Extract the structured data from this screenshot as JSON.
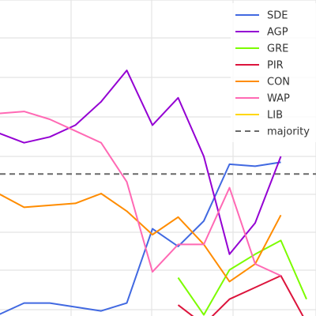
{
  "chart_data": {
    "type": "line",
    "title": "",
    "xlabel": "",
    "ylabel": "",
    "grid": true,
    "legend_position": "top-right",
    "x": [
      1,
      2,
      3,
      4,
      5,
      6,
      7,
      8,
      9,
      10,
      11,
      12,
      13
    ],
    "majority": 36,
    "series": [
      {
        "name": "SDE",
        "color": "#4169e1",
        "values": [
          0,
          3,
          3,
          2,
          1,
          3,
          22,
          17.5,
          24,
          38.5,
          38,
          39,
          null
        ]
      },
      {
        "name": "AGP",
        "color": "#9400d3",
        "values": [
          46.5,
          44,
          45.5,
          48.5,
          54.5,
          62.5,
          48.5,
          55.5,
          40.5,
          15.5,
          23.5,
          40.5,
          null
        ]
      },
      {
        "name": "GRE",
        "color": "#7cfc00",
        "values": [
          null,
          null,
          null,
          null,
          null,
          null,
          null,
          9.5,
          0,
          11.5,
          15.5,
          19,
          4
        ]
      },
      {
        "name": "PIR",
        "color": "#dc143c",
        "values": [
          null,
          null,
          null,
          null,
          null,
          null,
          null,
          2.5,
          -2.5,
          4,
          7,
          10,
          -2
        ]
      },
      {
        "name": "CON",
        "color": "#ff8c00",
        "values": [
          31,
          27.5,
          28,
          28.5,
          31,
          26.5,
          20.5,
          25,
          18,
          8.5,
          13,
          25.5,
          null
        ]
      },
      {
        "name": "WAP",
        "color": "#ff69b4",
        "values": [
          51.5,
          52,
          50,
          47,
          44,
          34,
          11,
          18,
          18,
          32.5,
          13,
          10,
          null
        ]
      },
      {
        "name": "LIB",
        "color": "#ffd700",
        "values": [
          null,
          null,
          null,
          null,
          null,
          null,
          null,
          null,
          null,
          null,
          null,
          null,
          null
        ]
      }
    ],
    "majority_label": "majority",
    "majority_color": "#696969"
  }
}
